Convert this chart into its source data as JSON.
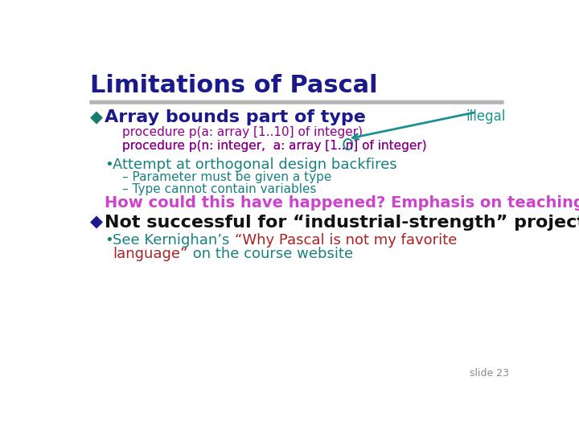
{
  "title": "Limitations of Pascal",
  "title_color": "#1a1a8c",
  "title_fontsize": 22,
  "slide_bg": "#ffffff",
  "separator_color": "#999999",
  "diamond_color": "#1a7a6e",
  "bullet1_text": "Array bounds part of type",
  "bullet1_color": "#1a1a8c",
  "bullet1_fontsize": 16,
  "illegal_text": "illegal",
  "illegal_color": "#1a9090",
  "illegal_fontsize": 12,
  "code_color": "#8b008b",
  "code_fontsize": 11,
  "code1": "procedure p(a: array [1..10] of integer)",
  "code2_before": "procedure p(n: integer,  a: array [1..",
  "code2_n": "n",
  "code2_after": "] of integer)",
  "sub_bullet_color": "#1a8080",
  "sub_bullet_text": "Attempt at orthogonal design backfires",
  "sub_bullet_fontsize": 13,
  "dash_color": "#1a8080",
  "dash1": "– Parameter must be given a type",
  "dash2": "– Type cannot contain variables",
  "dash_fontsize": 11,
  "emphasis_text": "How could this have happened? Emphasis on teaching!",
  "emphasis_color": "#cc44cc",
  "emphasis_fontsize": 14,
  "bullet2_diamond_color": "#1a1a8c",
  "bullet2_text": "Not successful for “industrial-strength” projects",
  "bullet2_color": "#111111",
  "bullet2_fontsize": 16,
  "see_bullet_color": "#1a8080",
  "see_start": "See Kernighan’s ",
  "see_quote_line1": "“Why Pascal is not my favorite",
  "see_color_normal": "#1a8080",
  "see_color_red": "#aa2222",
  "language_line2_red": "language”",
  "see_end_line2": " on the course website",
  "see_fontsize": 13,
  "slide_num": "slide 23",
  "slide_num_color": "#888888",
  "slide_num_fontsize": 9,
  "arrow_color": "#1a9090",
  "ellipse_color": "#1a9090"
}
